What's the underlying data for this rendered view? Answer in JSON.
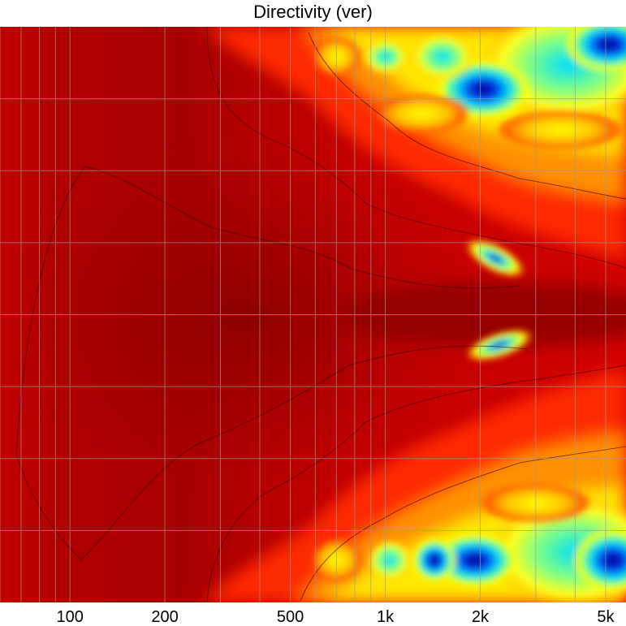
{
  "chart_data": {
    "type": "heatmap",
    "title": "Directivity (ver)",
    "xlabel": "",
    "ylabel": "",
    "x_scale": "log",
    "xlim": [
      60,
      5800
    ],
    "x_ticks": [
      {
        "value": 100,
        "label": "100"
      },
      {
        "value": 200,
        "label": "200"
      },
      {
        "value": 500,
        "label": "500"
      },
      {
        "value": 1000,
        "label": "1k"
      },
      {
        "value": 2000,
        "label": "2k"
      },
      {
        "value": 5000,
        "label": "5k"
      }
    ],
    "grid": true,
    "colormap": "jet (dark red = highest, dark blue = lowest)",
    "colors": {
      "high": "#a10000",
      "mid_high": "#ff2a00",
      "mid": "#ffff00",
      "mid_low": "#00e0e0",
      "low": "#0020c8",
      "contour": "#3a0000",
      "grid": "#9a9a9a"
    },
    "features": [
      {
        "description": "broad high-level region at low frequencies across all angles",
        "x_range": [
          60,
          500
        ],
        "level": "high"
      },
      {
        "description": "beam narrowing toward the axis above ~700 Hz",
        "x_range": [
          700,
          5800
        ],
        "level": "high-on-axis"
      },
      {
        "description": "nulls near 2k just above and below the axis",
        "x": 2300,
        "level": "low"
      },
      {
        "description": "low-level lobes at the top and bottom edges above ~1.5k",
        "x_range": [
          1500,
          5800
        ],
        "level": "low"
      }
    ]
  }
}
